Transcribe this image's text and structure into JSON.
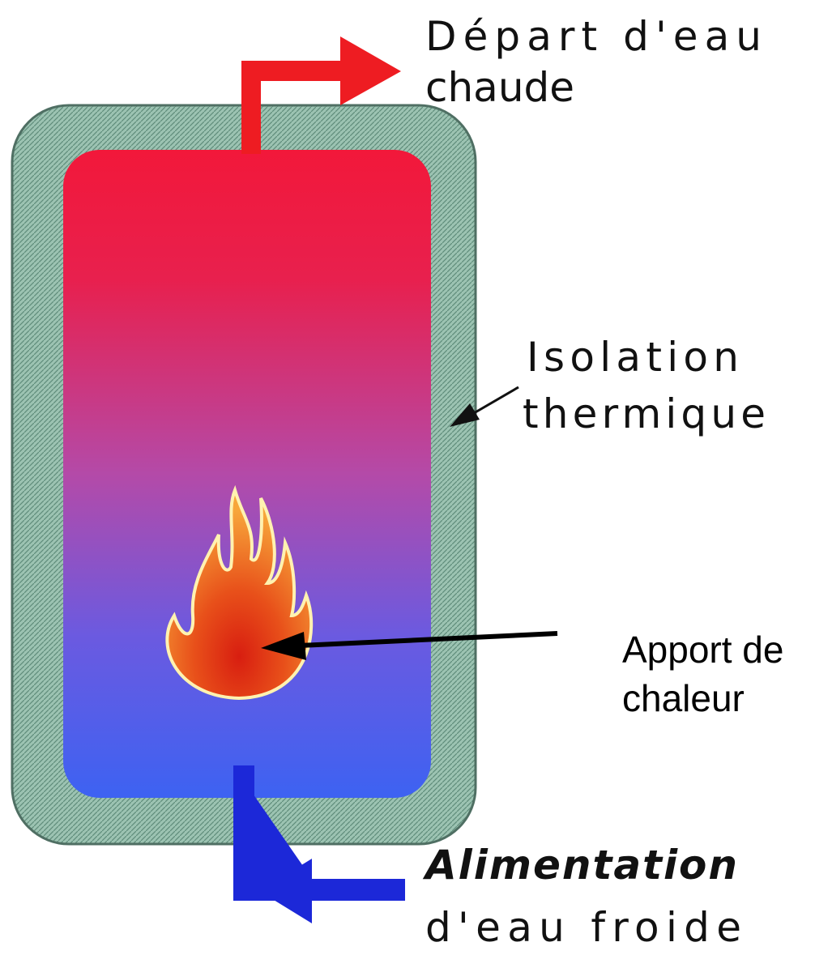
{
  "hot_water": {
    "lines": [
      "Départ d'eau",
      "chaude"
    ]
  },
  "insulation": {
    "lines": [
      "Isolation",
      "thermique"
    ]
  },
  "heat_input": {
    "lines": [
      "Apport de",
      "chaleur"
    ]
  },
  "cold_water": {
    "lines": [
      "Alimentation",
      "d'eau froide"
    ]
  }
}
